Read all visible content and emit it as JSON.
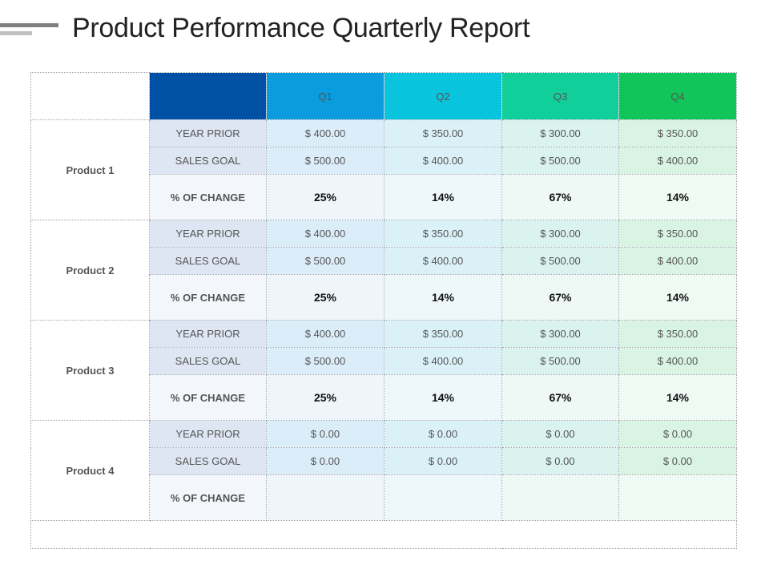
{
  "title": "Product Performance Quarterly Report",
  "colors": {
    "header_blank": "#0050a6",
    "q1": "#0a9cdc",
    "q2": "#08c4dc",
    "q3": "#10cf9a",
    "q4": "#12c55a"
  },
  "quarters": [
    "Q1",
    "Q2",
    "Q3",
    "Q4"
  ],
  "products": [
    {
      "name": "Product 1",
      "rows": [
        {
          "label": "YEAR  PRIOR",
          "values": [
            "$ 400.00",
            "$ 350.00",
            "$ 300.00",
            "$ 350.00"
          ]
        },
        {
          "label": "SALES GOAL",
          "values": [
            "$ 500.00",
            "$ 400.00",
            "$ 500.00",
            "$ 400.00"
          ]
        },
        {
          "label": "% OF CHANGE",
          "values": [
            "25%",
            "14%",
            "67%",
            "14%"
          ]
        }
      ]
    },
    {
      "name": "Product 2",
      "rows": [
        {
          "label": "YEAR PRIOR",
          "values": [
            "$ 400.00",
            "$ 350.00",
            "$ 300.00",
            "$ 350.00"
          ]
        },
        {
          "label": "SALES GOAL",
          "values": [
            "$ 500.00",
            "$ 400.00",
            "$ 500.00",
            "$ 400.00"
          ]
        },
        {
          "label": "% OF CHANGE",
          "values": [
            "25%",
            "14%",
            "67%",
            "14%"
          ]
        }
      ]
    },
    {
      "name": "Product 3",
      "rows": [
        {
          "label": "YEAR PRIOR",
          "values": [
            "$ 400.00",
            "$ 350.00",
            "$ 300.00",
            "$ 350.00"
          ]
        },
        {
          "label": "SALES GOAL",
          "values": [
            "$ 500.00",
            "$ 400.00",
            "$ 500.00",
            "$ 400.00"
          ]
        },
        {
          "label": "% OF CHANGE",
          "values": [
            "25%",
            "14%",
            "67%",
            "14%"
          ]
        }
      ]
    },
    {
      "name": "Product 4",
      "rows": [
        {
          "label": "YEAR PRIOR",
          "values": [
            "$ 0.00",
            "$ 0.00",
            "$ 0.00",
            "$ 0.00"
          ]
        },
        {
          "label": "SALES GOAL",
          "values": [
            "$ 0.00",
            "$ 0.00",
            "$ 0.00",
            "$ 0.00"
          ]
        },
        {
          "label": "% OF CHANGE",
          "values": [
            "",
            "",
            "",
            ""
          ]
        }
      ]
    }
  ]
}
